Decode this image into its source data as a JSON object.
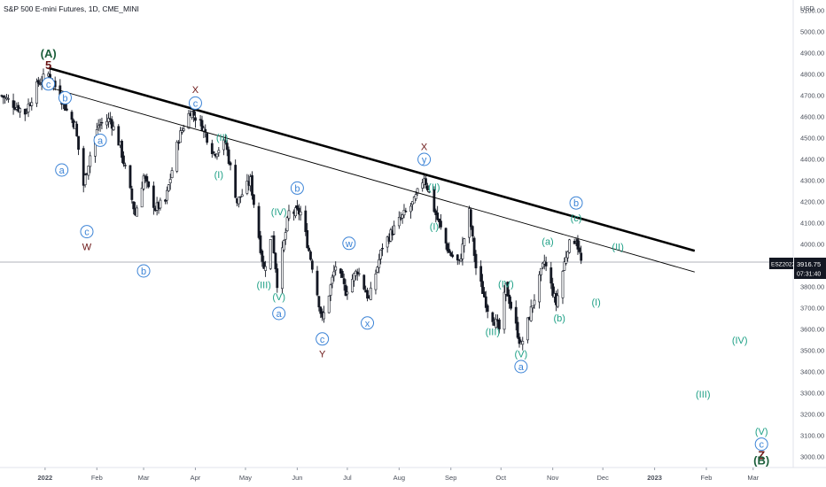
{
  "chart_data": {
    "type": "candlestick",
    "title": "S&P 500 E-mini Futures, 1D, CME_MINI",
    "currency": "USD",
    "price_label": {
      "symbol": "ESZ2022",
      "price": "3916.75",
      "countdown": "07:31:40"
    },
    "y_ticks": [
      3000,
      3100,
      3200,
      3300,
      3400,
      3500,
      3600,
      3700,
      3800,
      3900,
      4000,
      4100,
      4200,
      4300,
      4400,
      4500,
      4600,
      4700,
      4800,
      4900,
      5000,
      5100
    ],
    "y_tick_labels": [
      "3000.00",
      "3100.00",
      "3200.00",
      "3300.00",
      "3400.00",
      "3500.00",
      "3600.00",
      "3700.00",
      "3800.00",
      "3900.00",
      "4000.00",
      "4100.00",
      "4200.00",
      "4300.00",
      "4400.00",
      "4500.00",
      "4600.00",
      "4700.00",
      "4800.00",
      "4900.00",
      "5000.00",
      "5100.00"
    ],
    "ylim": [
      2950,
      5150
    ],
    "x_ticks": [
      {
        "date": "2022-01-01",
        "label": "2022"
      },
      {
        "date": "2022-02-01",
        "label": "Feb"
      },
      {
        "date": "2022-03-01",
        "label": "Mar"
      },
      {
        "date": "2022-04-01",
        "label": "Apr"
      },
      {
        "date": "2022-05-01",
        "label": "May"
      },
      {
        "date": "2022-06-01",
        "label": "Jun"
      },
      {
        "date": "2022-07-01",
        "label": "Jul"
      },
      {
        "date": "2022-08-01",
        "label": "Aug"
      },
      {
        "date": "2022-09-01",
        "label": "Sep"
      },
      {
        "date": "2022-10-01",
        "label": "Oct"
      },
      {
        "date": "2022-11-01",
        "label": "Nov"
      },
      {
        "date": "2022-12-01",
        "label": "Dec"
      },
      {
        "date": "2023-01-01",
        "label": "2023"
      },
      {
        "date": "2023-02-01",
        "label": "Feb"
      },
      {
        "date": "2023-03-01",
        "label": "Mar"
      }
    ],
    "xlim": [
      "2021-12-05",
      "2023-03-25"
    ],
    "price_path": [
      [
        "2021-12-06",
        4700
      ],
      [
        "2021-12-13",
        4660
      ],
      [
        "2021-12-20",
        4620
      ],
      [
        "2021-12-28",
        4760
      ],
      [
        "2022-01-03",
        4800
      ],
      [
        "2022-01-10",
        4700
      ],
      [
        "2022-01-14",
        4630
      ],
      [
        "2022-01-19",
        4560
      ],
      [
        "2022-01-24",
        4280
      ],
      [
        "2022-01-28",
        4420
      ],
      [
        "2022-02-02",
        4560
      ],
      [
        "2022-02-09",
        4590
      ],
      [
        "2022-02-15",
        4460
      ],
      [
        "2022-02-24",
        4140
      ],
      [
        "2022-03-01",
        4320
      ],
      [
        "2022-03-08",
        4170
      ],
      [
        "2022-03-14",
        4200
      ],
      [
        "2022-03-22",
        4500
      ],
      [
        "2022-03-29",
        4630
      ],
      [
        "2022-04-05",
        4560
      ],
      [
        "2022-04-12",
        4430
      ],
      [
        "2022-04-19",
        4480
      ],
      [
        "2022-04-26",
        4200
      ],
      [
        "2022-05-04",
        4300
      ],
      [
        "2022-05-12",
        3880
      ],
      [
        "2022-05-17",
        4050
      ],
      [
        "2022-05-20",
        3820
      ],
      [
        "2022-05-27",
        4150
      ],
      [
        "2022-06-03",
        4150
      ],
      [
        "2022-06-10",
        3900
      ],
      [
        "2022-06-16",
        3640
      ],
      [
        "2022-06-24",
        3900
      ],
      [
        "2022-06-30",
        3780
      ],
      [
        "2022-07-07",
        3880
      ],
      [
        "2022-07-14",
        3740
      ],
      [
        "2022-07-22",
        3990
      ],
      [
        "2022-08-01",
        4110
      ],
      [
        "2022-08-10",
        4200
      ],
      [
        "2022-08-16",
        4320
      ],
      [
        "2022-08-23",
        4140
      ],
      [
        "2022-08-31",
        3960
      ],
      [
        "2022-09-06",
        3910
      ],
      [
        "2022-09-12",
        4150
      ],
      [
        "2022-09-16",
        3890
      ],
      [
        "2022-09-23",
        3700
      ],
      [
        "2022-09-30",
        3600
      ],
      [
        "2022-10-04",
        3800
      ],
      [
        "2022-10-13",
        3520
      ],
      [
        "2022-10-20",
        3720
      ],
      [
        "2022-10-27",
        3920
      ],
      [
        "2022-11-03",
        3720
      ],
      [
        "2022-11-10",
        3990
      ],
      [
        "2022-11-15",
        4030
      ],
      [
        "2022-11-18",
        3916.75
      ]
    ],
    "trendlines": [
      {
        "name": "upper",
        "style": "thick",
        "points": [
          [
            "2022-01-03",
            4830
          ],
          [
            "2023-01-25",
            3970
          ]
        ]
      },
      {
        "name": "lower",
        "style": "thin",
        "points": [
          [
            "2022-01-03",
            4740
          ],
          [
            "2023-01-25",
            3870
          ]
        ]
      }
    ],
    "wave_labels": [
      {
        "text": "(A)",
        "date": "2022-01-03",
        "price": 4900,
        "color": "green",
        "circled": false,
        "size": "big"
      },
      {
        "text": "5",
        "date": "2022-01-03",
        "price": 4845,
        "color": "darkred",
        "circled": false,
        "size": "big"
      },
      {
        "text": "c",
        "date": "2022-01-03",
        "price": 4755,
        "color": "blue",
        "circled": true
      },
      {
        "text": "b",
        "date": "2022-01-13",
        "price": 4690,
        "color": "blue",
        "circled": true
      },
      {
        "text": "a",
        "date": "2022-01-11",
        "price": 4350,
        "color": "blue",
        "circled": true
      },
      {
        "text": "a",
        "date": "2022-02-03",
        "price": 4490,
        "color": "blue",
        "circled": true
      },
      {
        "text": "c",
        "date": "2022-01-26",
        "price": 4060,
        "color": "blue",
        "circled": true
      },
      {
        "text": "W",
        "date": "2022-01-26",
        "price": 3990,
        "color": "darkred",
        "circled": false
      },
      {
        "text": "b",
        "date": "2022-03-01",
        "price": 3875,
        "color": "blue",
        "circled": true
      },
      {
        "text": "X",
        "date": "2022-04-01",
        "price": 4730,
        "color": "darkred",
        "circled": false
      },
      {
        "text": "c",
        "date": "2022-04-01",
        "price": 4665,
        "color": "blue",
        "circled": true
      },
      {
        "text": "(II)",
        "date": "2022-04-17",
        "price": 4505,
        "color": "teal",
        "circled": false
      },
      {
        "text": "(I)",
        "date": "2022-04-15",
        "price": 4330,
        "color": "teal",
        "circled": false
      },
      {
        "text": "b",
        "date": "2022-06-01",
        "price": 4265,
        "color": "blue",
        "circled": true
      },
      {
        "text": "(IV)",
        "date": "2022-05-21",
        "price": 4155,
        "color": "teal",
        "circled": false
      },
      {
        "text": "(III)",
        "date": "2022-05-12",
        "price": 3810,
        "color": "teal",
        "circled": false
      },
      {
        "text": "(V)",
        "date": "2022-05-21",
        "price": 3755,
        "color": "teal",
        "circled": false
      },
      {
        "text": "a",
        "date": "2022-05-21",
        "price": 3675,
        "color": "blue",
        "circled": true
      },
      {
        "text": "w",
        "date": "2022-07-02",
        "price": 4005,
        "color": "blue",
        "circled": true
      },
      {
        "text": "c",
        "date": "2022-06-16",
        "price": 3555,
        "color": "blue",
        "circled": true
      },
      {
        "text": "Y",
        "date": "2022-06-16",
        "price": 3485,
        "color": "darkred",
        "circled": false
      },
      {
        "text": "x",
        "date": "2022-07-13",
        "price": 3630,
        "color": "blue",
        "circled": true
      },
      {
        "text": "X",
        "date": "2022-08-16",
        "price": 4460,
        "color": "darkred",
        "circled": false
      },
      {
        "text": "y",
        "date": "2022-08-16",
        "price": 4400,
        "color": "blue",
        "circled": true
      },
      {
        "text": "(II)",
        "date": "2022-08-22",
        "price": 4270,
        "color": "teal",
        "circled": false
      },
      {
        "text": "(I)",
        "date": "2022-08-22",
        "price": 4085,
        "color": "teal",
        "circled": false
      },
      {
        "text": "(IV)",
        "date": "2022-10-04",
        "price": 3815,
        "color": "teal",
        "circled": false
      },
      {
        "text": "(III)",
        "date": "2022-09-26",
        "price": 3590,
        "color": "teal",
        "circled": false
      },
      {
        "text": "(V)",
        "date": "2022-10-13",
        "price": 3485,
        "color": "teal",
        "circled": false
      },
      {
        "text": "a",
        "date": "2022-10-13",
        "price": 3425,
        "color": "blue",
        "circled": true
      },
      {
        "text": "(a)",
        "date": "2022-10-29",
        "price": 4015,
        "color": "teal",
        "circled": false
      },
      {
        "text": "(b)",
        "date": "2022-11-05",
        "price": 3655,
        "color": "teal",
        "circled": false
      },
      {
        "text": "b",
        "date": "2022-11-15",
        "price": 4195,
        "color": "blue",
        "circled": true
      },
      {
        "text": "(c)",
        "date": "2022-11-15",
        "price": 4125,
        "color": "teal",
        "circled": false
      },
      {
        "text": "(II)",
        "date": "2022-12-10",
        "price": 3990,
        "color": "teal",
        "circled": false
      },
      {
        "text": "(I)",
        "date": "2022-11-27",
        "price": 3730,
        "color": "teal",
        "circled": false
      },
      {
        "text": "(IV)",
        "date": "2023-02-21",
        "price": 3550,
        "color": "teal",
        "circled": false
      },
      {
        "text": "(III)",
        "date": "2023-01-30",
        "price": 3295,
        "color": "teal",
        "circled": false
      },
      {
        "text": "(V)",
        "date": "2023-03-06",
        "price": 3120,
        "color": "teal",
        "circled": false
      },
      {
        "text": "c",
        "date": "2023-03-06",
        "price": 3060,
        "color": "blue",
        "circled": true
      },
      {
        "text": "Z",
        "date": "2023-03-06",
        "price": 3010,
        "color": "darkred",
        "circled": false,
        "size": "big"
      },
      {
        "text": "(B)",
        "date": "2023-03-06",
        "price": 2985,
        "color": "green",
        "circled": false,
        "size": "big"
      }
    ],
    "colors": {
      "up": "#131722",
      "down": "#131722",
      "trend": "#000000",
      "green": "#1b5e3a",
      "darkred": "#6b1515",
      "teal": "#1ea086",
      "blue": "#3b83d6",
      "axis_text": "#4a4f5a",
      "price_line": "#b0b3bb"
    }
  }
}
